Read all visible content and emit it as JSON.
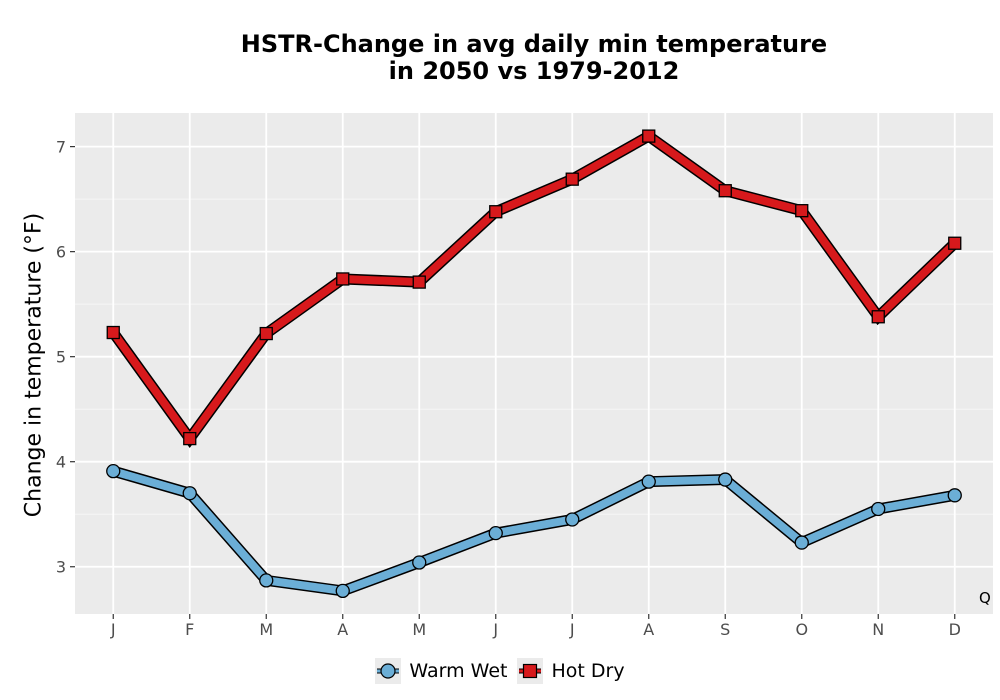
{
  "chart_data": {
    "type": "line",
    "title_line1": "HSTR-Change in avg daily min temperature",
    "title_line2": "in 2050 vs 1979-2012",
    "xlabel": "",
    "ylabel": "Change in temperature (°F)",
    "categories": [
      "J",
      "F",
      "M",
      "A",
      "M",
      "J",
      "J",
      "A",
      "S",
      "O",
      "N",
      "D"
    ],
    "yticks": [
      3,
      4,
      5,
      6,
      7
    ],
    "ylim": [
      2.55,
      7.32
    ],
    "grid": true,
    "legend_position": "bottom",
    "annotation": "Q",
    "series": [
      {
        "name": "Warm Wet",
        "marker": "circle",
        "color": "#6baed6",
        "values": [
          3.91,
          3.7,
          2.87,
          2.77,
          3.04,
          3.32,
          3.45,
          3.81,
          3.83,
          3.23,
          3.55,
          3.68
        ]
      },
      {
        "name": "Hot Dry",
        "marker": "square",
        "color": "#d7191c",
        "values": [
          5.23,
          4.22,
          5.22,
          5.74,
          5.71,
          6.38,
          6.69,
          7.1,
          6.58,
          6.39,
          5.38,
          6.08
        ]
      }
    ]
  }
}
